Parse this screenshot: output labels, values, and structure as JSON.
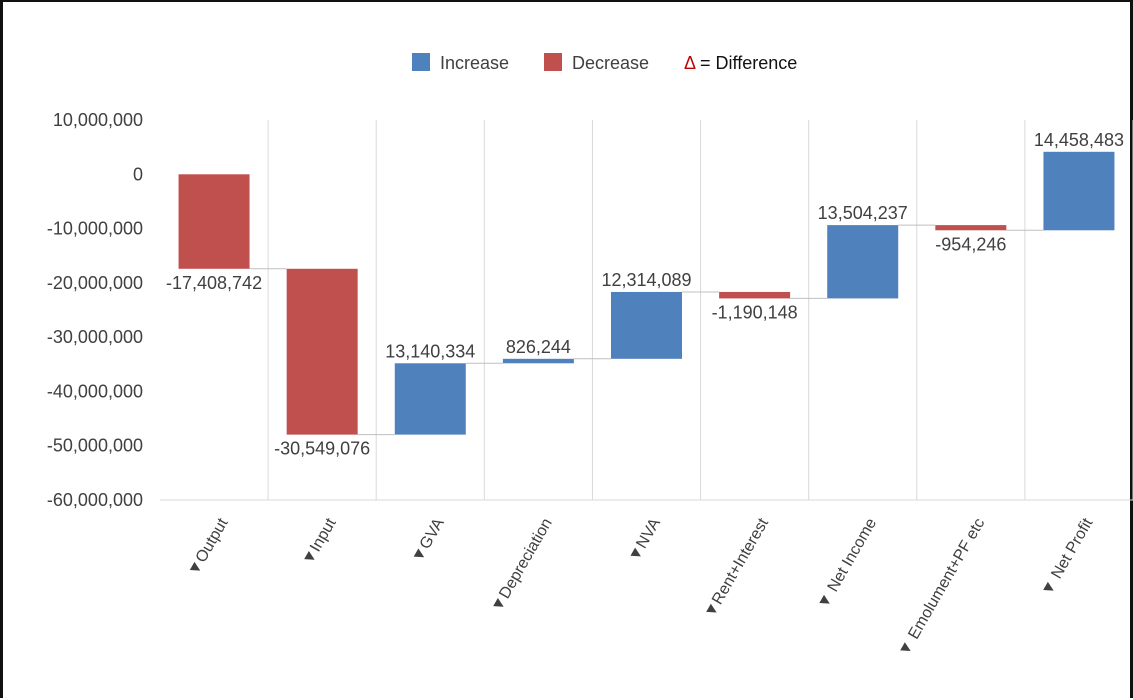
{
  "chart_data": {
    "type": "waterfall",
    "legend": {
      "placement": "top-center",
      "items": [
        {
          "label": "Increase",
          "color": "#4F81BD"
        },
        {
          "label": "Decrease",
          "color": "#C0504D"
        }
      ],
      "note_symbol": "Δ",
      "note_text": " = Difference"
    },
    "categories": [
      "▼Output",
      "▼Input",
      "▼GVA",
      "▼Depreciation",
      "▼NVA",
      "▼Rent+Interest",
      "▼ Net Income",
      "▼ Emolument+PF etc",
      "▼ Net Profit"
    ],
    "bars": [
      {
        "start": 0,
        "end": -17408742,
        "label": "-17,408,742",
        "type": "decrease"
      },
      {
        "start": -17408742,
        "end": -47957818,
        "label": "-30,549,076",
        "type": "decrease"
      },
      {
        "start": -47957818,
        "end": -34817484,
        "label": "13,140,334",
        "type": "increase"
      },
      {
        "start": -34817484,
        "end": -33991240,
        "label": "826,244",
        "type": "increase"
      },
      {
        "start": -33991240,
        "end": -21677151,
        "label": "12,314,089",
        "type": "increase"
      },
      {
        "start": -21677151,
        "end": -22867299,
        "label": "-1,190,148",
        "type": "decrease"
      },
      {
        "start": -22867299,
        "end": -9363062,
        "label": "13,504,237",
        "type": "increase"
      },
      {
        "start": -9363062,
        "end": -10317308,
        "label": "-954,246",
        "type": "decrease"
      },
      {
        "start": -10317308,
        "end": 4141175,
        "label": "14,458,483",
        "type": "increase"
      }
    ],
    "ylim": [
      -60000000,
      10000000
    ],
    "yticks": [
      {
        "value": 10000000,
        "label": "10,000,000"
      },
      {
        "value": 0,
        "label": "0"
      },
      {
        "value": -10000000,
        "label": "-10,000,000"
      },
      {
        "value": -20000000,
        "label": "-20,000,000"
      },
      {
        "value": -30000000,
        "label": "-30,000,000"
      },
      {
        "value": -40000000,
        "label": "-40,000,000"
      },
      {
        "value": -50000000,
        "label": "-50,000,000"
      },
      {
        "value": -60000000,
        "label": "-60,000,000"
      }
    ],
    "grid": true,
    "colors": {
      "increase": "#4F81BD",
      "decrease": "#C0504D",
      "delta": "#C00000"
    }
  }
}
